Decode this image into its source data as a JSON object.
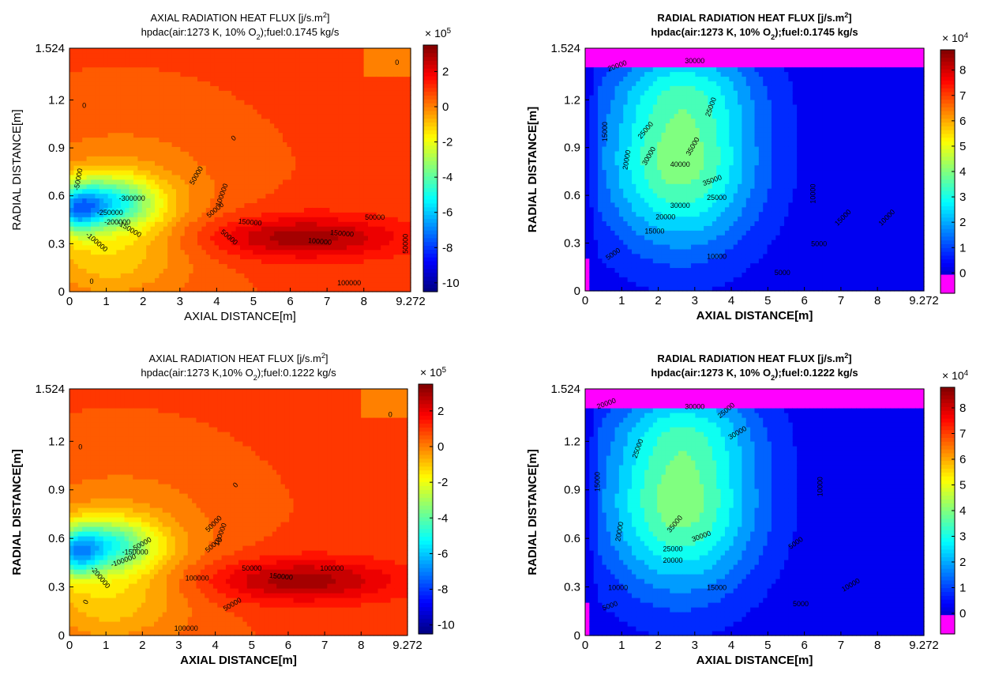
{
  "chart_data": [
    {
      "type": "heatmap",
      "title": "AXIAL RADIATION HEAT FLUX [j/s.m²]",
      "subtitle": "hpdac(air:1273 K, 10% O₂);fuel:0.1745 kg/s",
      "xlabel": "AXIAL DISTANCE[m]",
      "ylabel": "RADIAL DISTANCE[m]",
      "xlim": [
        0,
        9.272
      ],
      "ylim": [
        0,
        1.524
      ],
      "xticks": [
        "0",
        "1",
        "2",
        "3",
        "4",
        "5",
        "6",
        "7",
        "8",
        "9.272"
      ],
      "yticks": [
        "0",
        "0.3",
        "0.6",
        "0.9",
        "1.2",
        "1.524"
      ],
      "colorbar": {
        "label": "× 10⁵",
        "range": [
          -10.5,
          3.5
        ],
        "ticks": [
          "2",
          "0",
          "-2",
          "-4",
          "-6",
          "-8",
          "-10"
        ]
      },
      "contour_labels": [
        "0",
        "0",
        "50000",
        "100000",
        "50000",
        "150000",
        "150000",
        "100000",
        "50000",
        "50000",
        "-300000",
        "-250000",
        "-200000",
        "-100000",
        "-50000",
        "-150000",
        "50000",
        "100000",
        "0",
        "0"
      ]
    },
    {
      "type": "heatmap",
      "title": "RADIAL RADIATION HEAT FLUX [j/s.m²]",
      "subtitle": "hpdac(air:1273 K, 10% O₂);fuel:0.1745 kg/s",
      "xlabel": "AXIAL DISTANCE[m]",
      "ylabel": "RADIAL DISTANCE[m]",
      "xlim": [
        0,
        9.272
      ],
      "ylim": [
        0,
        1.524
      ],
      "xticks": [
        "0",
        "1",
        "2",
        "3",
        "4",
        "5",
        "6",
        "7",
        "8",
        "9.272"
      ],
      "yticks": [
        "0",
        "0.3",
        "0.6",
        "0.9",
        "1.2",
        "1.524"
      ],
      "colorbar": {
        "label": "× 10⁴",
        "range": [
          -0.8,
          8.8
        ],
        "ticks": [
          "8",
          "7",
          "6",
          "5",
          "4",
          "3",
          "2",
          "1",
          "0"
        ]
      },
      "contour_labels": [
        "20000",
        "30000",
        "25000",
        "35000",
        "40000",
        "35000",
        "30000",
        "25000",
        "20000",
        "15000",
        "10000",
        "5000",
        "15000",
        "20000",
        "25000",
        "30000",
        "10000",
        "5000",
        "15000",
        "10000",
        "5000"
      ]
    },
    {
      "type": "heatmap",
      "title": "AXIAL RADIATION HEAT FLUX [j/s.m²]",
      "subtitle": "hpdac(air:1273 K,10% O₂);fuel:0.1222 kg/s",
      "xlabel": "AXIAL DISTANCE[m]",
      "ylabel": "RADIAL DISTANCE[m]",
      "xlim": [
        0,
        9.272
      ],
      "ylim": [
        0,
        1.524
      ],
      "xticks": [
        "0",
        "1",
        "2",
        "3",
        "4",
        "5",
        "6",
        "7",
        "8",
        "9.272"
      ],
      "yticks": [
        "0",
        "0.3",
        "0.6",
        "0.9",
        "1.2",
        "1.524"
      ],
      "colorbar": {
        "label": "× 10⁵",
        "range": [
          -10.5,
          3.5
        ],
        "ticks": [
          "2",
          "0",
          "-2",
          "-4",
          "-6",
          "-8",
          "-10"
        ]
      },
      "contour_labels": [
        "0",
        "0",
        "50000",
        "100000",
        "50000",
        "150000",
        "100000",
        "100000",
        "50000",
        "-150000",
        "-50000",
        "-100000",
        "-200000",
        "50000",
        "100000",
        "0",
        "0"
      ]
    },
    {
      "type": "heatmap",
      "title": "RADIAL RADIATION HEAT FLUX [j/s.m²]",
      "subtitle": "hpdac(air:1273 K, 10% O₂);fuel:0.1222 kg/s",
      "xlabel": "AXIAL DISTANCE[m]",
      "ylabel": "RADIAL DISTANCE[m]",
      "xlim": [
        0,
        9.272
      ],
      "ylim": [
        0,
        1.524
      ],
      "xticks": [
        "0",
        "1",
        "2",
        "3",
        "4",
        "5",
        "6",
        "7",
        "8",
        "9.272"
      ],
      "yticks": [
        "0",
        "0.3",
        "0.6",
        "0.9",
        "1.2",
        "1.524"
      ],
      "colorbar": {
        "label": "× 10⁴",
        "range": [
          -0.8,
          8.8
        ],
        "ticks": [
          "8",
          "7",
          "6",
          "5",
          "4",
          "3",
          "2",
          "1",
          "0"
        ]
      },
      "contour_labels": [
        "20000",
        "30000",
        "25000",
        "35000",
        "30000",
        "25000",
        "20000",
        "15000",
        "10000",
        "5000",
        "15000",
        "20000",
        "25000",
        "30000",
        "10000",
        "5000",
        "10000",
        "5000"
      ]
    }
  ]
}
